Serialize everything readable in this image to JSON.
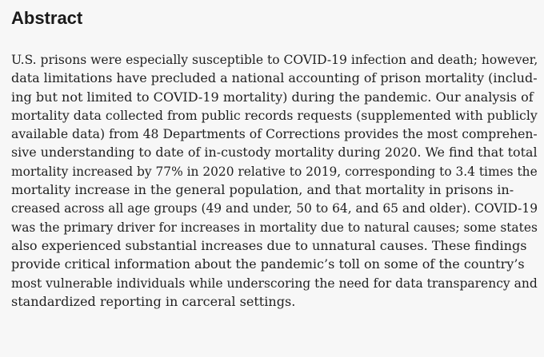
{
  "heading": "Abstract",
  "lines": [
    "U.S. prisons were especially susceptible to COVID-19 infection and death; however,",
    "data limitations have precluded a national accounting of prison mortality (includ-",
    "ing but not limited to COVID-19 mortality) during the pandemic. Our analysis of",
    "mortality data collected from public records requests (supplemented with publicly",
    "available data) from 48 Departments of Corrections provides the most comprehen-",
    "sive understanding to date of in-custody mortality during 2020. We find that total",
    "mortality increased by 77% in 2020 relative to 2019, corresponding to 3.4 times the",
    "mortality increase in the general population, and that mortality in prisons in-",
    "creased across all age groups (49 and under, 50 to 64, and 65 and older). COVID-19",
    "was the primary driver for increases in mortality due to natural causes; some states",
    "also experienced substantial increases due to unnatural causes. These findings",
    "provide critical information about the pandemic’s toll on some of the country’s",
    "most vulnerable individuals while underscoring the need for data transparency and",
    "standardized reporting in carceral settings."
  ]
}
